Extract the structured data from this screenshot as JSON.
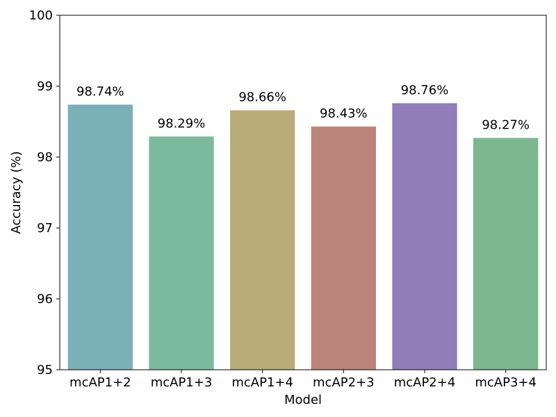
{
  "chart_data": {
    "type": "bar",
    "categories": [
      "mcAP1+2",
      "mcAP1+3",
      "mcAP1+4",
      "mcAP2+3",
      "mcAP2+4",
      "mcAP3+4"
    ],
    "values": [
      98.74,
      98.29,
      98.66,
      98.43,
      98.76,
      98.27
    ],
    "data_labels": [
      "98.74%",
      "98.29%",
      "98.66%",
      "98.43%",
      "98.76%",
      "98.27%"
    ],
    "colors": [
      "#7ab1b9",
      "#7bba9d",
      "#b8ad79",
      "#ba847b",
      "#917db9",
      "#7bb88f"
    ],
    "title": "",
    "xlabel": "Model",
    "ylabel": "Accuracy (%)",
    "ylim": [
      95,
      100
    ],
    "yticks": [
      "95",
      "96",
      "97",
      "98",
      "99",
      "100"
    ],
    "grid": false,
    "legend": "none"
  }
}
